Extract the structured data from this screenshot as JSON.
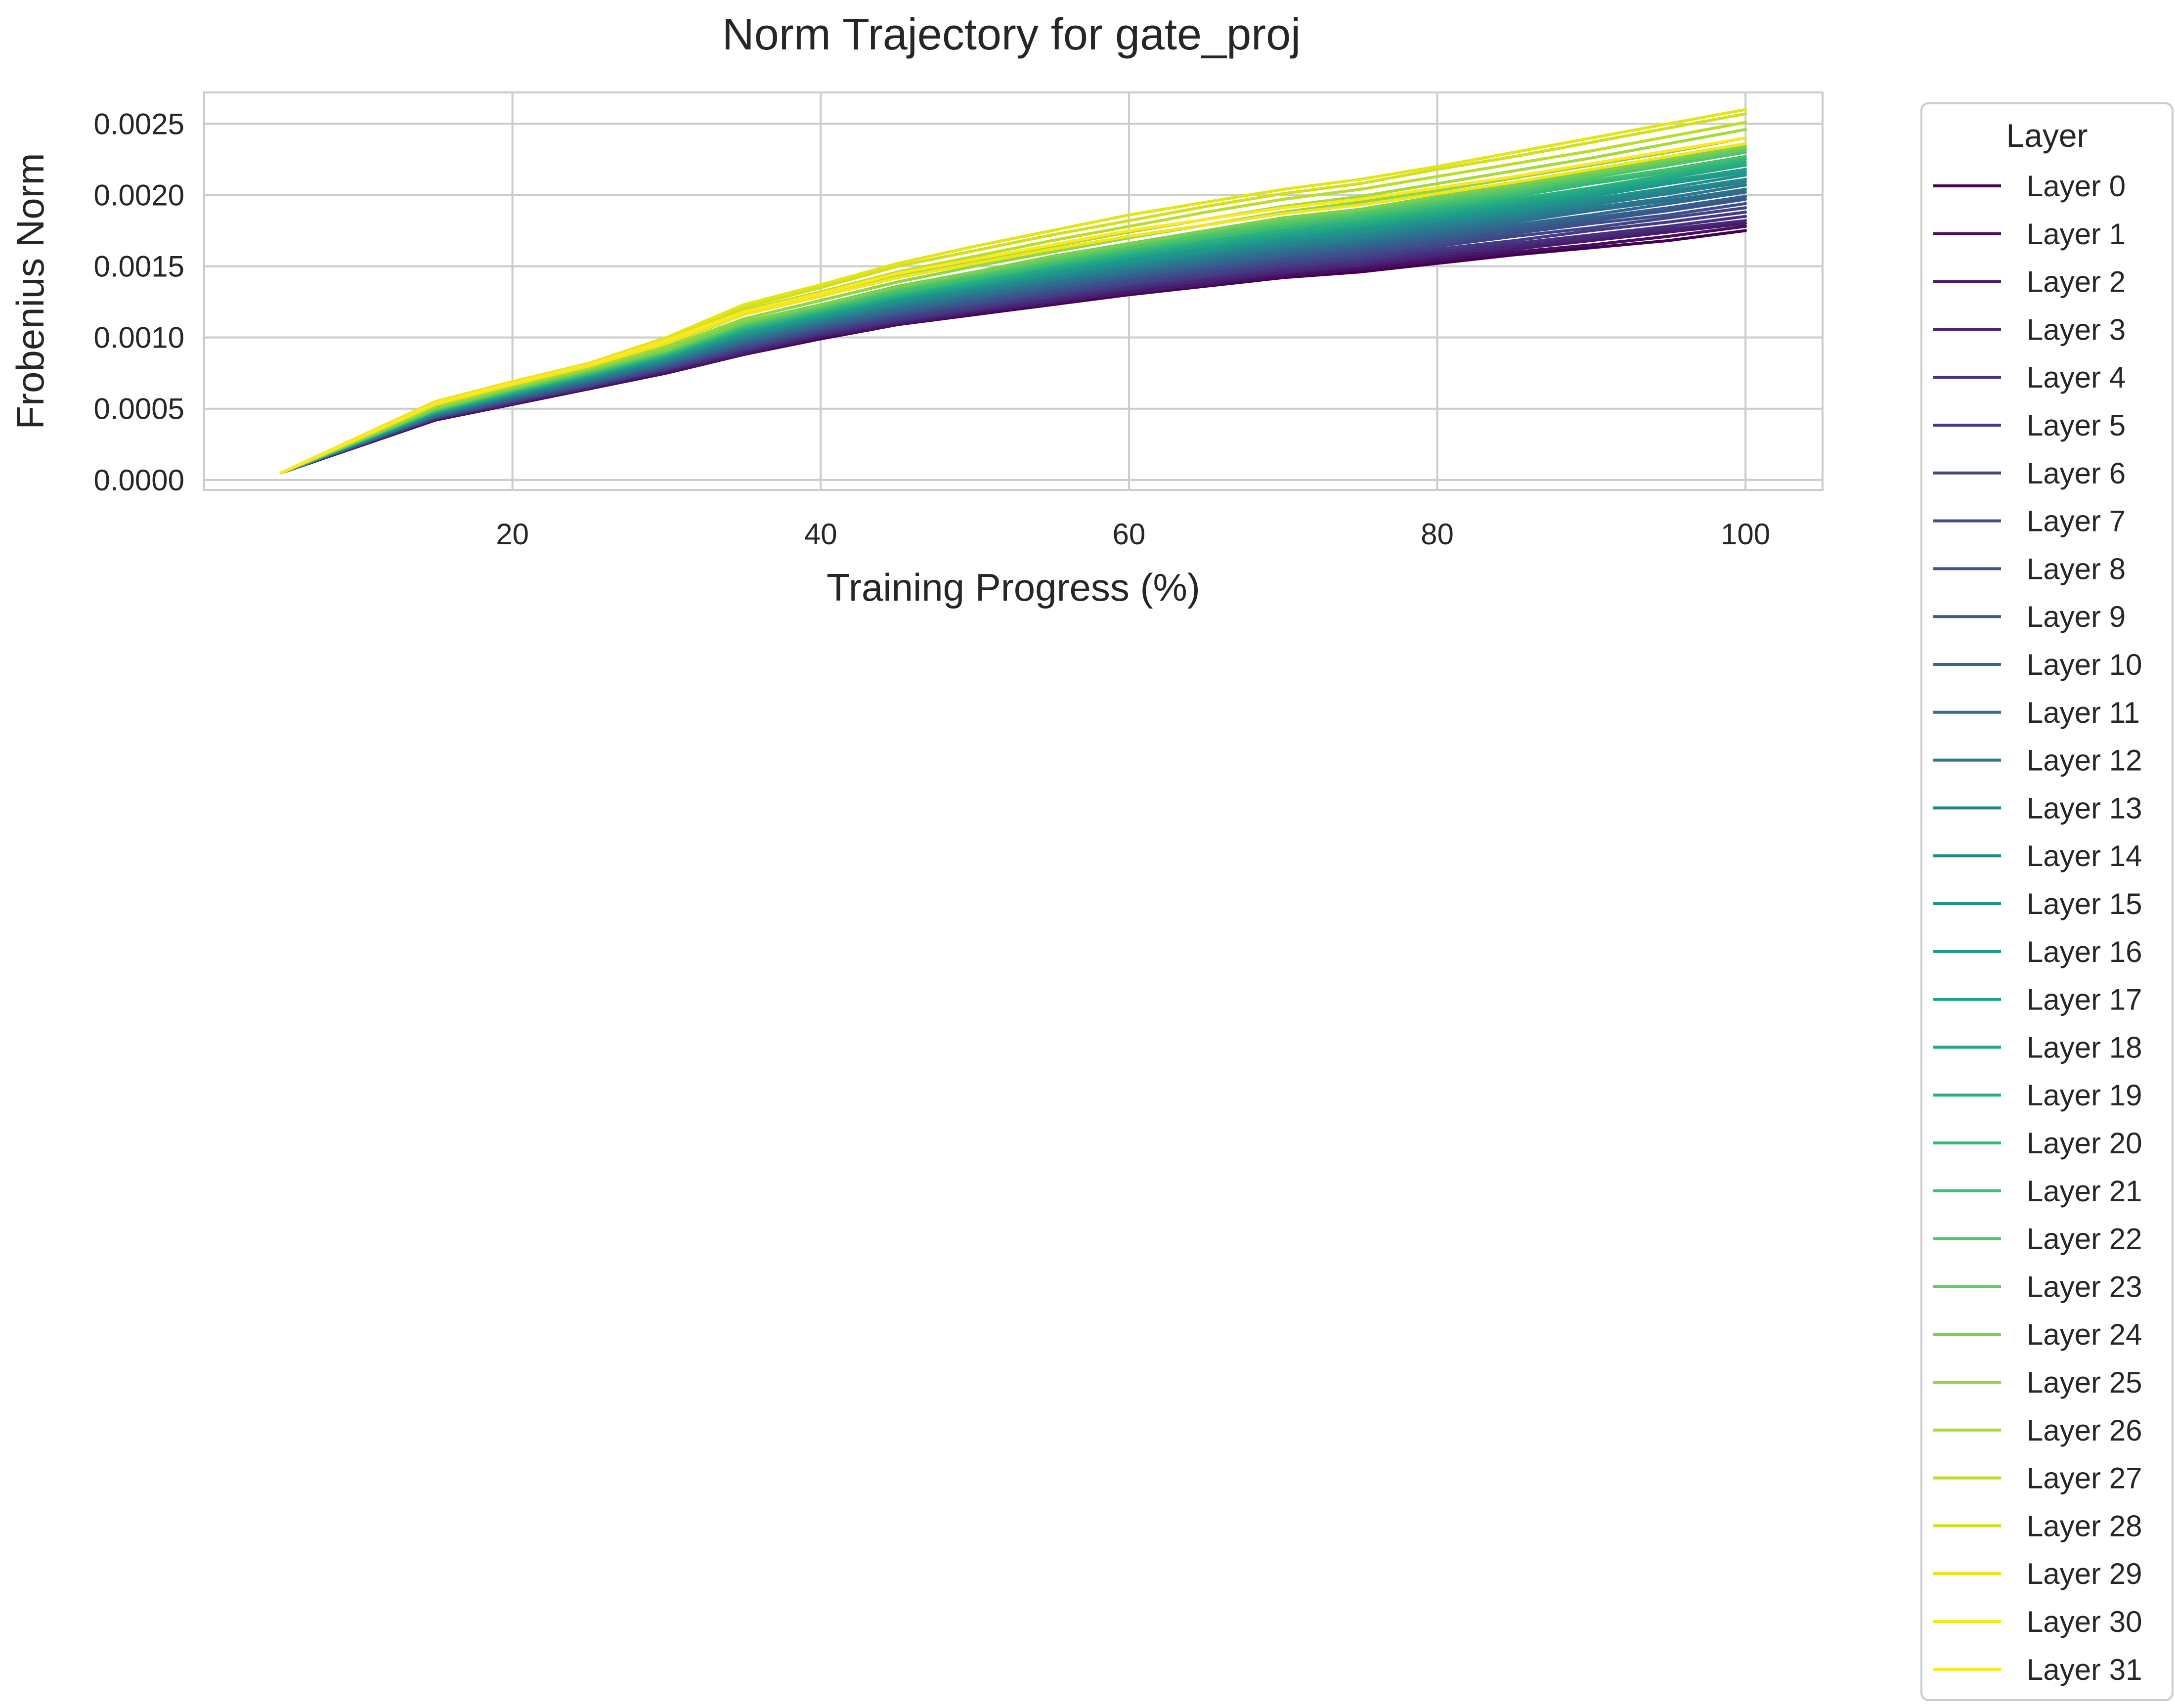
{
  "chart_data": {
    "type": "line",
    "title": "Norm Trajectory for gate_proj",
    "xlabel": "Training Progress (%)",
    "ylabel": "Frobenius Norm",
    "xlim": [
      0,
      105
    ],
    "ylim": [
      -7e-05,
      0.00272
    ],
    "xticks": [
      20,
      40,
      60,
      80,
      100
    ],
    "xtick_labels": [
      "20",
      "40",
      "60",
      "80",
      "100"
    ],
    "yticks": [
      0,
      0.0005,
      0.001,
      0.0015,
      0.002,
      0.0025
    ],
    "ytick_labels": [
      "0.0000",
      "0.0005",
      "0.0010",
      "0.0015",
      "0.0020",
      "0.0025"
    ],
    "grid": true,
    "legend": {
      "title": "Layer",
      "placement": "outside-right"
    },
    "x": [
      5,
      15,
      20,
      25,
      30,
      35,
      40,
      45,
      50,
      55,
      60,
      65,
      70,
      75,
      80,
      85,
      90,
      95,
      100
    ],
    "colormap": "viridis",
    "series": [
      {
        "name": "Layer 0",
        "color": "#440154",
        "values": [
          5e-05,
          0.00042,
          0.00053,
          0.00064,
          0.00075,
          0.00088,
          0.00099,
          0.00109,
          0.00116,
          0.00123,
          0.0013,
          0.00136,
          0.00142,
          0.00146,
          0.00152,
          0.00158,
          0.00163,
          0.00168,
          0.00175
        ]
      },
      {
        "name": "Layer 1",
        "color": "#470e61",
        "values": [
          5e-05,
          0.00042,
          0.00053,
          0.00064,
          0.00075,
          0.00088,
          0.001,
          0.00109,
          0.00117,
          0.00124,
          0.00131,
          0.00137,
          0.00143,
          0.00148,
          0.00154,
          0.0016,
          0.00165,
          0.00171,
          0.00178
        ]
      },
      {
        "name": "Layer 2",
        "color": "#481a6c",
        "values": [
          5e-05,
          0.00043,
          0.00054,
          0.00065,
          0.00076,
          0.00089,
          0.00101,
          0.0011,
          0.00118,
          0.00125,
          0.00132,
          0.00138,
          0.00145,
          0.0015,
          0.00156,
          0.00162,
          0.00168,
          0.00174,
          0.0018
        ]
      },
      {
        "name": "Layer 3",
        "color": "#482576",
        "values": [
          5e-05,
          0.00043,
          0.00054,
          0.00065,
          0.00077,
          0.0009,
          0.00102,
          0.00111,
          0.00119,
          0.00126,
          0.00134,
          0.0014,
          0.00146,
          0.00151,
          0.00158,
          0.00164,
          0.0017,
          0.00176,
          0.00182
        ]
      },
      {
        "name": "Layer 4",
        "color": "#46307e",
        "values": [
          5e-05,
          0.00043,
          0.00055,
          0.00066,
          0.00078,
          0.00091,
          0.00103,
          0.00112,
          0.0012,
          0.00128,
          0.00135,
          0.00142,
          0.00148,
          0.00153,
          0.0016,
          0.00166,
          0.00172,
          0.00178,
          0.00185
        ]
      },
      {
        "name": "Layer 5",
        "color": "#443b84",
        "values": [
          5e-05,
          0.00044,
          0.00055,
          0.00066,
          0.00078,
          0.00092,
          0.00104,
          0.00113,
          0.00121,
          0.00129,
          0.00137,
          0.00143,
          0.0015,
          0.00155,
          0.00162,
          0.00168,
          0.00175,
          0.00181,
          0.00188
        ]
      },
      {
        "name": "Layer 6",
        "color": "#414487",
        "values": [
          5e-05,
          0.00044,
          0.00056,
          0.00067,
          0.00079,
          0.00093,
          0.00105,
          0.00115,
          0.00123,
          0.00131,
          0.00138,
          0.00145,
          0.00152,
          0.00157,
          0.00164,
          0.00171,
          0.00177,
          0.00184,
          0.00191
        ]
      },
      {
        "name": "Layer 7",
        "color": "#3d4e8a",
        "values": [
          5e-05,
          0.00044,
          0.00056,
          0.00067,
          0.0008,
          0.00094,
          0.00106,
          0.00116,
          0.00124,
          0.00132,
          0.0014,
          0.00147,
          0.00154,
          0.00159,
          0.00166,
          0.00173,
          0.0018,
          0.00186,
          0.00194
        ]
      },
      {
        "name": "Layer 8",
        "color": "#39568c",
        "values": [
          5e-05,
          0.00045,
          0.00057,
          0.00068,
          0.0008,
          0.00095,
          0.00107,
          0.00117,
          0.00125,
          0.00134,
          0.00142,
          0.00149,
          0.00156,
          0.00161,
          0.00168,
          0.00175,
          0.00182,
          0.00189,
          0.00197
        ]
      },
      {
        "name": "Layer 9",
        "color": "#355f8d",
        "values": [
          5e-05,
          0.00045,
          0.00057,
          0.00069,
          0.00081,
          0.00096,
          0.00108,
          0.00118,
          0.00127,
          0.00135,
          0.00143,
          0.0015,
          0.00157,
          0.00163,
          0.0017,
          0.00177,
          0.00184,
          0.00191,
          0.00199
        ]
      },
      {
        "name": "Layer 10",
        "color": "#31688e",
        "values": [
          5e-05,
          0.00045,
          0.00058,
          0.00069,
          0.00082,
          0.00097,
          0.00109,
          0.00119,
          0.00128,
          0.00137,
          0.00145,
          0.00152,
          0.00159,
          0.00165,
          0.00172,
          0.00179,
          0.00186,
          0.00194,
          0.00202
        ]
      },
      {
        "name": "Layer 11",
        "color": "#2d708e",
        "values": [
          5e-05,
          0.00046,
          0.00058,
          0.0007,
          0.00082,
          0.00098,
          0.0011,
          0.00121,
          0.00129,
          0.00138,
          0.00146,
          0.00154,
          0.00161,
          0.00167,
          0.00174,
          0.00181,
          0.00189,
          0.00196,
          0.00204
        ]
      },
      {
        "name": "Layer 12",
        "color": "#2a788e",
        "values": [
          5e-05,
          0.00046,
          0.00059,
          0.0007,
          0.00083,
          0.00099,
          0.00111,
          0.00122,
          0.00131,
          0.0014,
          0.00148,
          0.00155,
          0.00163,
          0.00168,
          0.00176,
          0.00183,
          0.00191,
          0.00198,
          0.00207
        ]
      },
      {
        "name": "Layer 13",
        "color": "#27808e",
        "values": [
          5e-05,
          0.00046,
          0.00059,
          0.00071,
          0.00084,
          0.001,
          0.00112,
          0.00123,
          0.00132,
          0.00141,
          0.00149,
          0.00157,
          0.00164,
          0.0017,
          0.00178,
          0.00185,
          0.00193,
          0.00201,
          0.00209
        ]
      },
      {
        "name": "Layer 14",
        "color": "#23888e",
        "values": [
          5e-05,
          0.00047,
          0.0006,
          0.00072,
          0.00085,
          0.00101,
          0.00113,
          0.00124,
          0.00133,
          0.00142,
          0.00151,
          0.00159,
          0.00166,
          0.00172,
          0.0018,
          0.00187,
          0.00195,
          0.00203,
          0.00211
        ]
      },
      {
        "name": "Layer 15",
        "color": "#21918c",
        "values": [
          5e-05,
          0.00047,
          0.0006,
          0.00072,
          0.00085,
          0.00102,
          0.00114,
          0.00125,
          0.00135,
          0.00144,
          0.00152,
          0.0016,
          0.00168,
          0.00174,
          0.00182,
          0.00189,
          0.00197,
          0.00205,
          0.00214
        ]
      },
      {
        "name": "Layer 16",
        "color": "#1f988b",
        "values": [
          5e-05,
          0.00047,
          0.0006,
          0.00073,
          0.00086,
          0.00103,
          0.00115,
          0.00127,
          0.00136,
          0.00145,
          0.00154,
          0.00162,
          0.0017,
          0.00176,
          0.00183,
          0.00191,
          0.00199,
          0.00208,
          0.00216
        ]
      },
      {
        "name": "Layer 17",
        "color": "#1fa088",
        "values": [
          5e-05,
          0.00048,
          0.00061,
          0.00073,
          0.00087,
          0.00104,
          0.00116,
          0.00128,
          0.00137,
          0.00147,
          0.00156,
          0.00164,
          0.00171,
          0.00178,
          0.00185,
          0.00193,
          0.00201,
          0.0021,
          0.00218
        ]
      },
      {
        "name": "Layer 18",
        "color": "#22a884",
        "values": [
          5e-05,
          0.00048,
          0.00061,
          0.00074,
          0.00087,
          0.00105,
          0.00117,
          0.00129,
          0.00138,
          0.00148,
          0.00157,
          0.00165,
          0.00173,
          0.00179,
          0.00187,
          0.00195,
          0.00203,
          0.00212,
          0.00221
        ]
      },
      {
        "name": "Layer 19",
        "color": "#2ab07f",
        "values": [
          5e-05,
          0.00048,
          0.00062,
          0.00074,
          0.00088,
          0.00106,
          0.00118,
          0.0013,
          0.0014,
          0.0015,
          0.00159,
          0.00167,
          0.00175,
          0.00181,
          0.00189,
          0.00197,
          0.00205,
          0.00214,
          0.00223
        ]
      },
      {
        "name": "Layer 20",
        "color": "#35b779",
        "values": [
          5e-05,
          0.00049,
          0.00062,
          0.00075,
          0.00089,
          0.00107,
          0.00119,
          0.00131,
          0.00141,
          0.00151,
          0.0016,
          0.00169,
          0.00177,
          0.00183,
          0.00191,
          0.00199,
          0.00208,
          0.00216,
          0.00225
        ]
      },
      {
        "name": "Layer 21",
        "color": "#42be71",
        "values": [
          5e-05,
          0.00049,
          0.00063,
          0.00075,
          0.00089,
          0.00108,
          0.0012,
          0.00132,
          0.00142,
          0.00152,
          0.00162,
          0.0017,
          0.00178,
          0.00185,
          0.00193,
          0.00201,
          0.0021,
          0.00218,
          0.00227
        ]
      },
      {
        "name": "Layer 22",
        "color": "#52c569",
        "values": [
          5e-05,
          0.00049,
          0.00063,
          0.00076,
          0.0009,
          0.00109,
          0.00121,
          0.00134,
          0.00144,
          0.00154,
          0.00163,
          0.00172,
          0.0018,
          0.00187,
          0.00195,
          0.00203,
          0.00212,
          0.00221,
          0.0023
        ]
      },
      {
        "name": "Layer 23",
        "color": "#64cb5f",
        "values": [
          5e-05,
          0.0005,
          0.00064,
          0.00077,
          0.00091,
          0.0011,
          0.00122,
          0.00135,
          0.00145,
          0.00155,
          0.00165,
          0.00174,
          0.00182,
          0.00189,
          0.00197,
          0.00205,
          0.00214,
          0.00223,
          0.00232
        ]
      },
      {
        "name": "Layer 24",
        "color": "#7ad151",
        "values": [
          5e-05,
          0.0005,
          0.00064,
          0.00077,
          0.00091,
          0.00111,
          0.00123,
          0.00136,
          0.00146,
          0.00157,
          0.00166,
          0.00175,
          0.00184,
          0.0019,
          0.00199,
          0.00207,
          0.00216,
          0.00225,
          0.00234
        ]
      },
      {
        "name": "Layer 25",
        "color": "#8fd744",
        "values": [
          5e-05,
          0.00051,
          0.00065,
          0.00078,
          0.00093,
          0.00113,
          0.00126,
          0.00139,
          0.0015,
          0.0016,
          0.0017,
          0.00179,
          0.00188,
          0.00195,
          0.00203,
          0.00212,
          0.00221,
          0.0023,
          0.0024
        ]
      },
      {
        "name": "Layer 26",
        "color": "#a5db36",
        "values": [
          5e-05,
          0.00052,
          0.00066,
          0.00079,
          0.00095,
          0.00116,
          0.00129,
          0.00143,
          0.00154,
          0.00164,
          0.00174,
          0.00183,
          0.00192,
          0.00199,
          0.00208,
          0.00217,
          0.00226,
          0.00236,
          0.00246
        ]
      },
      {
        "name": "Layer 27",
        "color": "#bade28",
        "values": [
          5e-05,
          0.00053,
          0.00067,
          0.0008,
          0.00097,
          0.00119,
          0.00132,
          0.00146,
          0.00157,
          0.00168,
          0.00178,
          0.00188,
          0.00197,
          0.00204,
          0.00213,
          0.00222,
          0.00231,
          0.00241,
          0.00251
        ]
      },
      {
        "name": "Layer 28",
        "color": "#d0e11c",
        "values": [
          5e-05,
          0.00054,
          0.00068,
          0.00081,
          0.00099,
          0.00121,
          0.00135,
          0.0015,
          0.00161,
          0.00172,
          0.00182,
          0.00192,
          0.00201,
          0.00208,
          0.00218,
          0.00227,
          0.00237,
          0.00247,
          0.00257
        ]
      },
      {
        "name": "Layer 29",
        "color": "#e4e419",
        "values": [
          5e-05,
          0.00055,
          0.00069,
          0.00082,
          0.001,
          0.00123,
          0.00137,
          0.00152,
          0.00164,
          0.00175,
          0.00186,
          0.00195,
          0.00204,
          0.00211,
          0.0022,
          0.0023,
          0.0024,
          0.0025,
          0.0026
        ]
      },
      {
        "name": "Layer 30",
        "color": "#f1e51d",
        "values": [
          5e-05,
          0.00053,
          0.00067,
          0.0008,
          0.00096,
          0.00116,
          0.00129,
          0.00142,
          0.00152,
          0.00162,
          0.00171,
          0.00179,
          0.00187,
          0.00193,
          0.00201,
          0.00209,
          0.00218,
          0.00227,
          0.00236
        ]
      },
      {
        "name": "Layer 31",
        "color": "#fde725",
        "values": [
          5e-05,
          0.00054,
          0.00068,
          0.00081,
          0.00098,
          0.00118,
          0.00131,
          0.00145,
          0.00155,
          0.00165,
          0.00175,
          0.00183,
          0.00191,
          0.00197,
          0.00205,
          0.00213,
          0.00222,
          0.00231,
          0.0024
        ]
      }
    ]
  }
}
